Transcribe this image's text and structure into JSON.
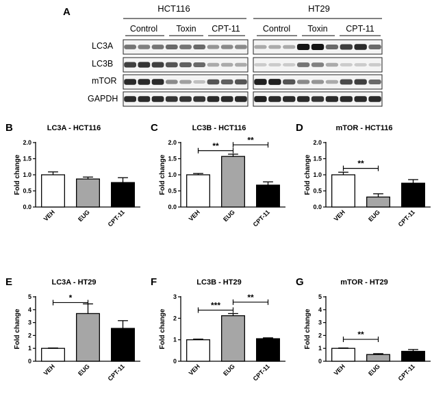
{
  "panel_a": {
    "letter": "A",
    "cell_lines": [
      "HCT116",
      "HT29"
    ],
    "groups": [
      "Control",
      "Toxin",
      "CPT-11"
    ],
    "rows": [
      "LC3A",
      "LC3B",
      "mTOR",
      "GAPDH"
    ],
    "blot_intensity": {
      "HCT116": {
        "LC3A": [
          0.55,
          0.5,
          0.55,
          0.6,
          0.55,
          0.6,
          0.4,
          0.45,
          0.45
        ],
        "LC3B": [
          0.8,
          0.85,
          0.8,
          0.7,
          0.65,
          0.6,
          0.3,
          0.3,
          0.3
        ],
        "mTOR": [
          0.9,
          0.9,
          0.9,
          0.45,
          0.35,
          0.2,
          0.7,
          0.65,
          0.7
        ],
        "GAPDH": [
          0.9,
          0.9,
          0.9,
          0.85,
          0.85,
          0.85,
          0.9,
          0.9,
          0.9
        ]
      },
      "HT29": {
        "LC3A": [
          0.3,
          0.3,
          0.3,
          1.0,
          1.0,
          0.6,
          0.8,
          0.9,
          0.6
        ],
        "LC3B": [
          0.15,
          0.15,
          0.15,
          0.55,
          0.5,
          0.3,
          0.15,
          0.15,
          0.15
        ],
        "mTOR": [
          0.95,
          0.95,
          0.7,
          0.45,
          0.4,
          0.3,
          0.75,
          0.8,
          0.6
        ],
        "GAPDH": [
          0.95,
          0.9,
          0.9,
          0.9,
          0.85,
          0.9,
          0.9,
          0.9,
          0.9
        ]
      }
    }
  },
  "chart_data": [
    {
      "letter": "B",
      "type": "bar",
      "title": "LC3A - HCT116",
      "ylabel": "Fold change",
      "categories": [
        "VEH",
        "EUG",
        "CPT-11"
      ],
      "values": [
        1.0,
        0.87,
        0.76
      ],
      "errors": [
        0.09,
        0.06,
        0.15
      ],
      "colors": [
        "#ffffff",
        "#a6a6a6",
        "#000000"
      ],
      "ylim": [
        0.0,
        2.0
      ],
      "yticks": [
        0.0,
        0.5,
        1.0,
        1.5,
        2.0
      ],
      "ytick_labels": [
        "0.0",
        "0.5",
        "1.0",
        "1.5",
        "2.0"
      ],
      "significance": []
    },
    {
      "letter": "C",
      "type": "bar",
      "title": "LC3B - HCT116",
      "ylabel": "Fold change",
      "categories": [
        "VEH",
        "EUG",
        "CPT-11"
      ],
      "values": [
        1.0,
        1.57,
        0.68
      ],
      "errors": [
        0.04,
        0.07,
        0.1
      ],
      "colors": [
        "#ffffff",
        "#a6a6a6",
        "#000000"
      ],
      "ylim": [
        0.0,
        2.0
      ],
      "yticks": [
        0.0,
        0.5,
        1.0,
        1.5,
        2.0
      ],
      "ytick_labels": [
        "0.0",
        "0.5",
        "1.0",
        "1.5",
        "2.0"
      ],
      "significance": [
        {
          "from": 0,
          "to": 1,
          "y": 1.75,
          "label": "**"
        },
        {
          "from": 1,
          "to": 2,
          "y": 1.93,
          "label": "**"
        }
      ]
    },
    {
      "letter": "D",
      "type": "bar",
      "title": "mTOR - HCT116",
      "ylabel": "Fold change",
      "categories": [
        "VEH",
        "EUG",
        "CPT-11"
      ],
      "values": [
        1.0,
        0.31,
        0.74
      ],
      "errors": [
        0.08,
        0.1,
        0.11
      ],
      "colors": [
        "#ffffff",
        "#a6a6a6",
        "#000000"
      ],
      "ylim": [
        0.0,
        2.0
      ],
      "yticks": [
        0.0,
        0.5,
        1.0,
        1.5,
        2.0
      ],
      "ytick_labels": [
        "0.0",
        "0.5",
        "1.0",
        "1.5",
        "2.0"
      ],
      "significance": [
        {
          "from": 0,
          "to": 1,
          "y": 1.2,
          "label": "**"
        }
      ]
    },
    {
      "letter": "E",
      "type": "bar",
      "title": "LC3A - HT29",
      "ylabel": "Fold change",
      "categories": [
        "VEH",
        "EUG",
        "CPT-11"
      ],
      "values": [
        1.0,
        3.7,
        2.55
      ],
      "errors": [
        0.03,
        0.75,
        0.6
      ],
      "colors": [
        "#ffffff",
        "#a6a6a6",
        "#000000"
      ],
      "ylim": [
        0,
        5
      ],
      "yticks": [
        0,
        1,
        2,
        3,
        4,
        5
      ],
      "ytick_labels": [
        "0",
        "1",
        "2",
        "3",
        "4",
        "5"
      ],
      "significance": [
        {
          "from": 0,
          "to": 1,
          "y": 4.55,
          "label": "*"
        }
      ]
    },
    {
      "letter": "F",
      "type": "bar",
      "title": "LC3B - HT29",
      "ylabel": "Fold change",
      "categories": [
        "VEH",
        "EUG",
        "CPT-11"
      ],
      "values": [
        1.0,
        2.12,
        1.05
      ],
      "errors": [
        0.03,
        0.1,
        0.04
      ],
      "colors": [
        "#ffffff",
        "#a6a6a6",
        "#000000"
      ],
      "ylim": [
        0,
        3
      ],
      "yticks": [
        0,
        1,
        2,
        3
      ],
      "ytick_labels": [
        "0",
        "1",
        "2",
        "3"
      ],
      "significance": [
        {
          "from": 0,
          "to": 1,
          "y": 2.38,
          "label": "***"
        },
        {
          "from": 1,
          "to": 2,
          "y": 2.75,
          "label": "**"
        }
      ]
    },
    {
      "letter": "G",
      "type": "bar",
      "title": "mTOR - HT29",
      "ylabel": "Fold change",
      "categories": [
        "VEH",
        "EUG",
        "CPT-11"
      ],
      "values": [
        1.0,
        0.52,
        0.77
      ],
      "errors": [
        0.03,
        0.07,
        0.14
      ],
      "colors": [
        "#ffffff",
        "#a6a6a6",
        "#000000"
      ],
      "ylim": [
        0,
        5
      ],
      "yticks": [
        0,
        1,
        2,
        3,
        4,
        5
      ],
      "ytick_labels": [
        "0",
        "1",
        "2",
        "3",
        "4",
        "5"
      ],
      "significance": [
        {
          "from": 0,
          "to": 1,
          "y": 1.7,
          "label": "**"
        }
      ]
    }
  ]
}
